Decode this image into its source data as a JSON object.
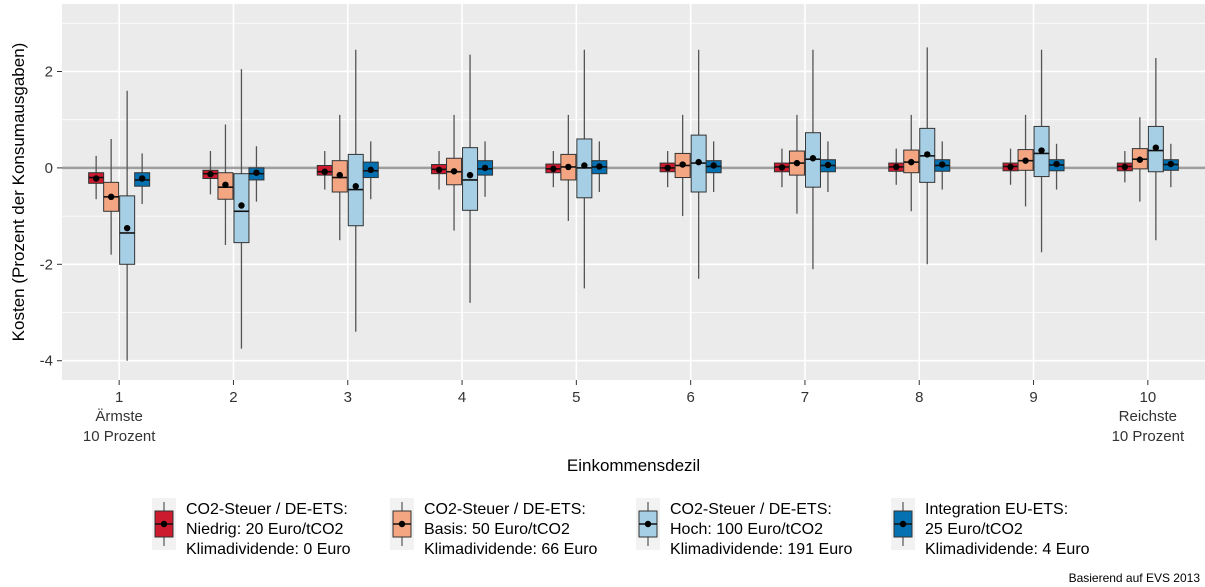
{
  "chart_data": {
    "type": "boxplot",
    "xlabel": "Einkommensdezil",
    "ylabel": "Kosten (Prozent der Konsumausgaben)",
    "ylim": [
      -4.4,
      3.4
    ],
    "y_ticks": [
      -4,
      -2,
      0,
      2
    ],
    "categories": [
      "1",
      "2",
      "3",
      "4",
      "5",
      "6",
      "7",
      "8",
      "9",
      "10"
    ],
    "first_category_sub": [
      "Ärmste",
      "10 Prozent"
    ],
    "last_category_sub": [
      "Reichste",
      "10 Prozent"
    ],
    "grid": true,
    "reference_line": 0,
    "legend_position": "bottom",
    "series": [
      {
        "name": "CO2-Steuer / DE-ETS: Niedrig: 20 Euro/tCO2 Klimadividende: 0 Euro",
        "legend_lines": [
          "CO2-Steuer / DE-ETS:",
          "Niedrig: 20 Euro/tCO2",
          "Klimadividende: 0 Euro"
        ],
        "color": "#CC1A2E",
        "boxes": [
          {
            "lo": -0.65,
            "q1": -0.32,
            "med": -0.2,
            "q3": -0.1,
            "hi": 0.25,
            "mean": -0.22
          },
          {
            "lo": -0.55,
            "q1": -0.22,
            "med": -0.12,
            "q3": -0.05,
            "hi": 0.35,
            "mean": -0.13
          },
          {
            "lo": -0.45,
            "q1": -0.15,
            "med": -0.08,
            "q3": 0.05,
            "hi": 0.35,
            "mean": -0.08
          },
          {
            "lo": -0.45,
            "q1": -0.12,
            "med": -0.03,
            "q3": 0.07,
            "hi": 0.35,
            "mean": -0.04
          },
          {
            "lo": -0.4,
            "q1": -0.1,
            "med": -0.02,
            "q3": 0.08,
            "hi": 0.35,
            "mean": -0.02
          },
          {
            "lo": -0.4,
            "q1": -0.08,
            "med": 0.0,
            "q3": 0.1,
            "hi": 0.35,
            "mean": 0.0
          },
          {
            "lo": -0.4,
            "q1": -0.08,
            "med": 0.02,
            "q3": 0.1,
            "hi": 0.4,
            "mean": 0.01
          },
          {
            "lo": -0.35,
            "q1": -0.07,
            "med": 0.02,
            "q3": 0.1,
            "hi": 0.4,
            "mean": 0.02
          },
          {
            "lo": -0.35,
            "q1": -0.06,
            "med": 0.03,
            "q3": 0.1,
            "hi": 0.4,
            "mean": 0.02
          },
          {
            "lo": -0.3,
            "q1": -0.06,
            "med": 0.03,
            "q3": 0.1,
            "hi": 0.35,
            "mean": 0.02
          }
        ]
      },
      {
        "name": "CO2-Steuer / DE-ETS: Basis: 50 Euro/tCO2 Klimadividende: 66 Euro",
        "legend_lines": [
          "CO2-Steuer / DE-ETS:",
          "Basis: 50 Euro/tCO2",
          "Klimadividende: 66 Euro"
        ],
        "color": "#F4A582",
        "boxes": [
          {
            "lo": -1.8,
            "q1": -0.9,
            "med": -0.6,
            "q3": -0.3,
            "hi": 0.6,
            "mean": -0.6
          },
          {
            "lo": -1.6,
            "q1": -0.65,
            "med": -0.4,
            "q3": -0.1,
            "hi": 0.9,
            "mean": -0.35
          },
          {
            "lo": -1.5,
            "q1": -0.5,
            "med": -0.2,
            "q3": 0.15,
            "hi": 1.1,
            "mean": -0.15
          },
          {
            "lo": -1.3,
            "q1": -0.35,
            "med": -0.08,
            "q3": 0.2,
            "hi": 1.1,
            "mean": -0.07
          },
          {
            "lo": -1.1,
            "q1": -0.25,
            "med": 0.02,
            "q3": 0.28,
            "hi": 1.1,
            "mean": 0.02
          },
          {
            "lo": -1.0,
            "q1": -0.2,
            "med": 0.05,
            "q3": 0.3,
            "hi": 1.1,
            "mean": 0.07
          },
          {
            "lo": -0.95,
            "q1": -0.15,
            "med": 0.1,
            "q3": 0.35,
            "hi": 1.1,
            "mean": 0.1
          },
          {
            "lo": -0.9,
            "q1": -0.1,
            "med": 0.12,
            "q3": 0.37,
            "hi": 1.1,
            "mean": 0.12
          },
          {
            "lo": -0.8,
            "q1": -0.05,
            "med": 0.15,
            "q3": 0.38,
            "hi": 1.1,
            "mean": 0.15
          },
          {
            "lo": -0.7,
            "q1": -0.02,
            "med": 0.18,
            "q3": 0.4,
            "hi": 1.05,
            "mean": 0.17
          }
        ]
      },
      {
        "name": "CO2-Steuer / DE-ETS: Hoch: 100 Euro/tCO2 Klimadividende: 191 Euro",
        "legend_lines": [
          "CO2-Steuer / DE-ETS:",
          "Hoch: 100 Euro/tCO2",
          "Klimadividende: 191 Euro"
        ],
        "color": "#A6CFE5",
        "boxes": [
          {
            "lo": -4.0,
            "q1": -2.0,
            "med": -1.35,
            "q3": -0.58,
            "hi": 1.6,
            "mean": -1.25
          },
          {
            "lo": -3.75,
            "q1": -1.55,
            "med": -0.9,
            "q3": -0.12,
            "hi": 2.05,
            "mean": -0.78
          },
          {
            "lo": -3.4,
            "q1": -1.2,
            "med": -0.45,
            "q3": 0.28,
            "hi": 2.45,
            "mean": -0.38
          },
          {
            "lo": -2.8,
            "q1": -0.88,
            "med": -0.25,
            "q3": 0.42,
            "hi": 2.35,
            "mean": -0.15
          },
          {
            "lo": -2.5,
            "q1": -0.62,
            "med": 0.0,
            "q3": 0.6,
            "hi": 2.45,
            "mean": 0.05
          },
          {
            "lo": -2.3,
            "q1": -0.5,
            "med": 0.1,
            "q3": 0.68,
            "hi": 2.45,
            "mean": 0.12
          },
          {
            "lo": -2.1,
            "q1": -0.4,
            "med": 0.18,
            "q3": 0.73,
            "hi": 2.45,
            "mean": 0.2
          },
          {
            "lo": -2.0,
            "q1": -0.3,
            "med": 0.25,
            "q3": 0.82,
            "hi": 2.5,
            "mean": 0.28
          },
          {
            "lo": -1.75,
            "q1": -0.18,
            "med": 0.3,
            "q3": 0.86,
            "hi": 2.45,
            "mean": 0.36
          },
          {
            "lo": -1.5,
            "q1": -0.08,
            "med": 0.36,
            "q3": 0.86,
            "hi": 2.28,
            "mean": 0.42
          }
        ]
      },
      {
        "name": "Integration EU-ETS: 25 Euro/tCO2 Klimadividende: 4 Euro",
        "legend_lines": [
          "Integration EU-ETS:",
          "25 Euro/tCO2",
          "Klimadividende: 4 Euro"
        ],
        "color": "#0571B0",
        "boxes": [
          {
            "lo": -0.75,
            "q1": -0.38,
            "med": -0.25,
            "q3": -0.1,
            "hi": 0.3,
            "mean": -0.22
          },
          {
            "lo": -0.7,
            "q1": -0.25,
            "med": -0.12,
            "q3": 0.0,
            "hi": 0.45,
            "mean": -0.1
          },
          {
            "lo": -0.65,
            "q1": -0.2,
            "med": -0.06,
            "q3": 0.12,
            "hi": 0.55,
            "mean": -0.04
          },
          {
            "lo": -0.6,
            "q1": -0.15,
            "med": -0.02,
            "q3": 0.15,
            "hi": 0.55,
            "mean": 0.0
          },
          {
            "lo": -0.5,
            "q1": -0.12,
            "med": 0.02,
            "q3": 0.15,
            "hi": 0.55,
            "mean": 0.03
          },
          {
            "lo": -0.5,
            "q1": -0.1,
            "med": 0.03,
            "q3": 0.15,
            "hi": 0.55,
            "mean": 0.05
          },
          {
            "lo": -0.5,
            "q1": -0.08,
            "med": 0.05,
            "q3": 0.17,
            "hi": 0.55,
            "mean": 0.06
          },
          {
            "lo": -0.45,
            "q1": -0.07,
            "med": 0.05,
            "q3": 0.17,
            "hi": 0.55,
            "mean": 0.07
          },
          {
            "lo": -0.45,
            "q1": -0.06,
            "med": 0.06,
            "q3": 0.17,
            "hi": 0.5,
            "mean": 0.08
          },
          {
            "lo": -0.4,
            "q1": -0.05,
            "med": 0.07,
            "q3": 0.17,
            "hi": 0.5,
            "mean": 0.08
          }
        ]
      }
    ]
  },
  "source_note": "Basierend auf EVS 2013",
  "colors": {
    "panel_bg": "#EBEBEB",
    "grid": "#FFFFFF",
    "zero_line": "#9E9E9E",
    "whisker": "#555555"
  }
}
